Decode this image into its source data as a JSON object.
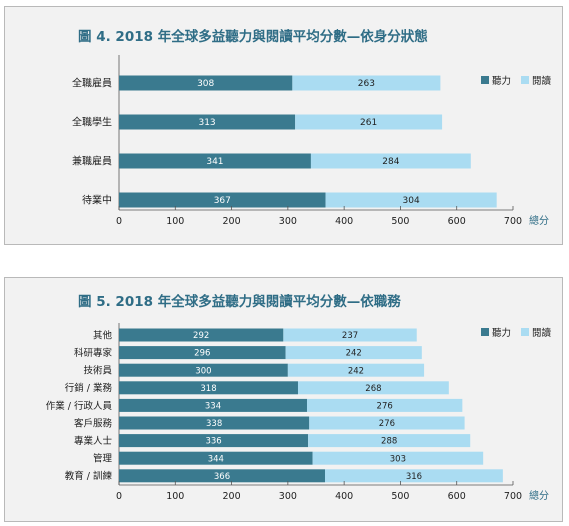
{
  "figures": [
    {
      "title": "圖 4. 2018 年全球多益聽力與閱讀平均分數—依身分狀態"
    },
    {
      "title": "圖 5. 2018 年全球多益聽力與閱讀平均分數—依職務"
    }
  ],
  "colors": {
    "listening": "#3a7a8f",
    "reading": "#aadcf2",
    "title": "#2f6d86",
    "panel_bg": "#f2f2f2",
    "axis": "#555555"
  },
  "chart_data": [
    {
      "type": "bar",
      "orientation": "horizontal",
      "stacked": true,
      "categories": [
        "全職雇員",
        "全職學生",
        "兼職雇員",
        "待業中"
      ],
      "series": [
        {
          "name": "聽力",
          "values": [
            308,
            313,
            341,
            367
          ]
        },
        {
          "name": "閱讀",
          "values": [
            263,
            261,
            284,
            304
          ]
        }
      ],
      "xlim": [
        0,
        700
      ],
      "xticks": [
        "0",
        "100",
        "200",
        "300",
        "400",
        "500",
        "600",
        "700"
      ],
      "xlabel": "總分",
      "legend": "top-right",
      "grid": false
    },
    {
      "type": "bar",
      "orientation": "horizontal",
      "stacked": true,
      "categories": [
        "其他",
        "科研專家",
        "技術員",
        "行銷 / 業務",
        "作業 / 行政人員",
        "客戶服務",
        "專業人士",
        "管理",
        "教育 / 訓練"
      ],
      "series": [
        {
          "name": "聽力",
          "values": [
            292,
            296,
            300,
            318,
            334,
            338,
            336,
            344,
            366
          ]
        },
        {
          "name": "閱讀",
          "values": [
            237,
            242,
            242,
            268,
            276,
            276,
            288,
            303,
            316
          ]
        }
      ],
      "xlim": [
        0,
        700
      ],
      "xticks": [
        "0",
        "100",
        "200",
        "300",
        "400",
        "500",
        "600",
        "700"
      ],
      "xlabel": "總分",
      "legend": "top-right",
      "grid": false
    }
  ]
}
